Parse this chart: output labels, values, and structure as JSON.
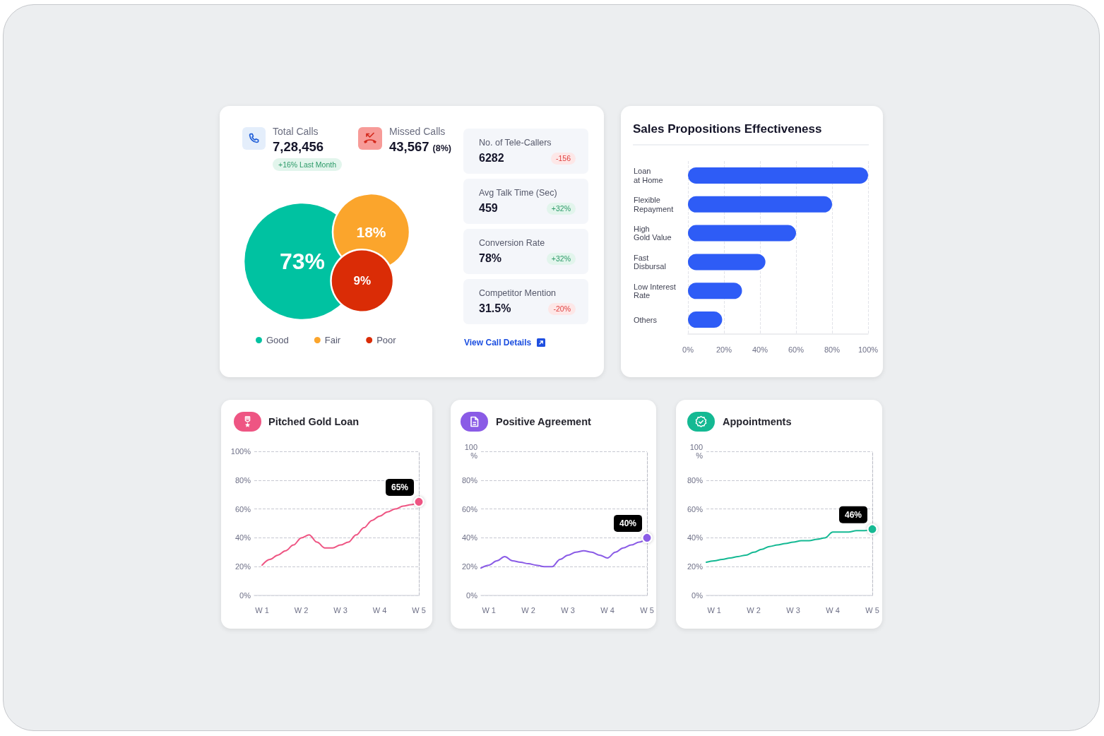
{
  "chart_data": [
    {
      "type": "other",
      "categories": [
        "Good",
        "Fair",
        "Poor"
      ],
      "values": [
        73,
        18,
        9
      ],
      "value_labels": [
        "73%",
        "18%",
        "9%"
      ],
      "colors": [
        "#00c2a1",
        "#fba52c",
        "#da2c06"
      ],
      "annotations": [
        "Total Calls",
        "7,28,456",
        "+16% Last Month",
        "Missed Calls",
        "43,567",
        "(8%)",
        "No. of Tele-Callers",
        "6282",
        "-156",
        "Avg Talk Time (Sec)",
        "459",
        "+32%",
        "Conversion Rate",
        "78%",
        "+32%",
        "Competitor Mention",
        "31.5%",
        "-20%",
        "View Call Details"
      ]
    },
    {
      "type": "bar",
      "orientation": "horizontal",
      "title": "Sales Propositions Effectiveness",
      "categories": [
        "Loan\nat Home",
        "Flexible\nRepayment",
        "High\nGold Value",
        "Fast\nDisbursal",
        "Low Interest\nRate",
        "Others"
      ],
      "values": [
        100,
        80,
        60,
        43,
        30,
        19
      ],
      "color": "#2e5cf6",
      "xlim": [
        0,
        100
      ],
      "xticks": [
        {
          "value": 0,
          "label": "0%"
        },
        {
          "value": 20,
          "label": "20%"
        },
        {
          "value": 40,
          "label": "40%"
        },
        {
          "value": 60,
          "label": "60%"
        },
        {
          "value": 80,
          "label": "80%"
        },
        {
          "value": 100,
          "label": "100%"
        }
      ],
      "grid": "x"
    },
    {
      "type": "line",
      "title": "Pitched Gold Loan",
      "categories": [
        null,
        "W 1",
        null,
        null,
        null,
        null,
        "W 2",
        null,
        null,
        null,
        null,
        "W 3",
        null,
        null,
        null,
        null,
        "W 4",
        null,
        null,
        null,
        null,
        "W 5"
      ],
      "values": [
        null,
        21,
        25,
        28,
        31,
        35,
        40,
        42,
        37,
        33,
        33,
        35,
        37,
        42,
        47,
        52,
        55,
        58,
        60,
        62,
        63,
        65
      ],
      "value_labels": [
        null,
        null,
        null,
        null,
        null,
        null,
        null,
        null,
        null,
        null,
        null,
        null,
        null,
        null,
        null,
        null,
        null,
        null,
        null,
        null,
        null,
        "65%"
      ],
      "color": "#ee5583",
      "ylim": [
        0,
        100
      ],
      "yticks": [
        {
          "value": 0,
          "label": "0%"
        },
        {
          "value": 20,
          "label": "20%"
        },
        {
          "value": 40,
          "label": "40%"
        },
        {
          "value": 60,
          "label": "60%"
        },
        {
          "value": 80,
          "label": "80%"
        },
        {
          "value": 100,
          "label": "100%"
        }
      ],
      "grid": "y"
    },
    {
      "type": "line",
      "title": "Positive Agreement",
      "categories": [
        null,
        "W 1",
        null,
        null,
        null,
        null,
        "W 2",
        null,
        null,
        null,
        null,
        "W 3",
        null,
        null,
        null,
        null,
        "W 4",
        null,
        null,
        null,
        null,
        "W 5"
      ],
      "values": [
        19,
        21,
        24,
        27,
        24,
        23,
        22,
        21,
        20,
        20,
        25,
        28,
        30,
        31,
        30,
        28,
        26,
        30,
        33,
        35,
        37,
        40
      ],
      "value_labels": [
        null,
        null,
        null,
        null,
        null,
        null,
        null,
        null,
        null,
        null,
        null,
        null,
        null,
        null,
        null,
        null,
        null,
        null,
        null,
        null,
        null,
        "40%"
      ],
      "color": "#8a5be6",
      "ylim": [
        0,
        100
      ],
      "yticks": [
        {
          "value": 0,
          "label": "0%"
        },
        {
          "value": 20,
          "label": "20%"
        },
        {
          "value": 40,
          "label": "40%"
        },
        {
          "value": 60,
          "label": "60%"
        },
        {
          "value": 80,
          "label": "80%"
        },
        {
          "value": 100,
          "label": "100%"
        }
      ],
      "grid": "y"
    },
    {
      "type": "line",
      "title": "Appointments",
      "categories": [
        null,
        "W 1",
        null,
        null,
        null,
        null,
        "W 2",
        null,
        null,
        null,
        null,
        "W 3",
        null,
        null,
        null,
        null,
        "W 4",
        null,
        null,
        null,
        null,
        "W 5"
      ],
      "values": [
        23,
        24,
        25,
        26,
        27,
        28,
        30,
        32,
        34,
        35,
        36,
        37,
        38,
        38,
        39,
        40,
        44,
        44,
        44,
        45,
        45,
        46
      ],
      "value_labels": [
        null,
        null,
        null,
        null,
        null,
        null,
        null,
        null,
        null,
        null,
        null,
        null,
        null,
        null,
        null,
        null,
        null,
        null,
        null,
        null,
        null,
        "46%"
      ],
      "color": "#14b993",
      "ylim": [
        0,
        100
      ],
      "yticks": [
        {
          "value": 0,
          "label": "0%"
        },
        {
          "value": 20,
          "label": "20%"
        },
        {
          "value": 40,
          "label": "40%"
        },
        {
          "value": 60,
          "label": "60%"
        },
        {
          "value": 80,
          "label": "80%"
        },
        {
          "value": 100,
          "label": "100%"
        }
      ],
      "grid": "y"
    }
  ]
}
